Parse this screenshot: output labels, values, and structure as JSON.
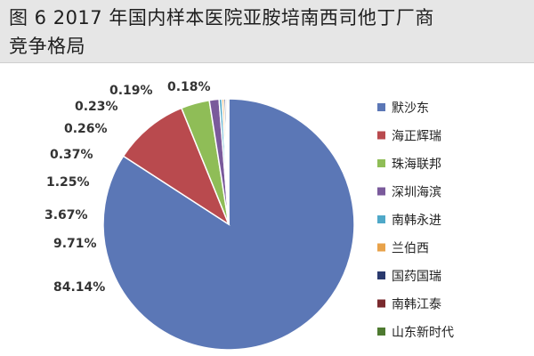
{
  "title": {
    "line1": "图 6  2017 年国内样本医院亚胺培南西司他丁厂商",
    "line2": "竞争格局"
  },
  "colors": {
    "title_bg": "#e6e6e6"
  },
  "chart_data": {
    "type": "pie",
    "title": "图 6  2017 年国内样本医院亚胺培南西司他丁厂商竞争格局",
    "legend_position": "right",
    "categories": [
      "默沙东",
      "海正辉瑞",
      "珠海联邦",
      "深圳海滨",
      "南韩永进",
      "兰伯西",
      "国药国瑞",
      "南韩江泰",
      "山东新时代"
    ],
    "values": [
      84.14,
      9.71,
      3.67,
      1.25,
      0.37,
      0.26,
      0.23,
      0.19,
      0.18
    ],
    "value_labels": [
      "84.14%",
      "9.71%",
      "3.67%",
      "1.25%",
      "0.37%",
      "0.26%",
      "0.23%",
      "0.19%",
      "0.18%"
    ],
    "colors": [
      "#5b77b6",
      "#b94a4e",
      "#8fbd57",
      "#7a5a9b",
      "#4fa8c8",
      "#e8a24a",
      "#2a3a6e",
      "#7a2a2e",
      "#4e7a30"
    ]
  }
}
